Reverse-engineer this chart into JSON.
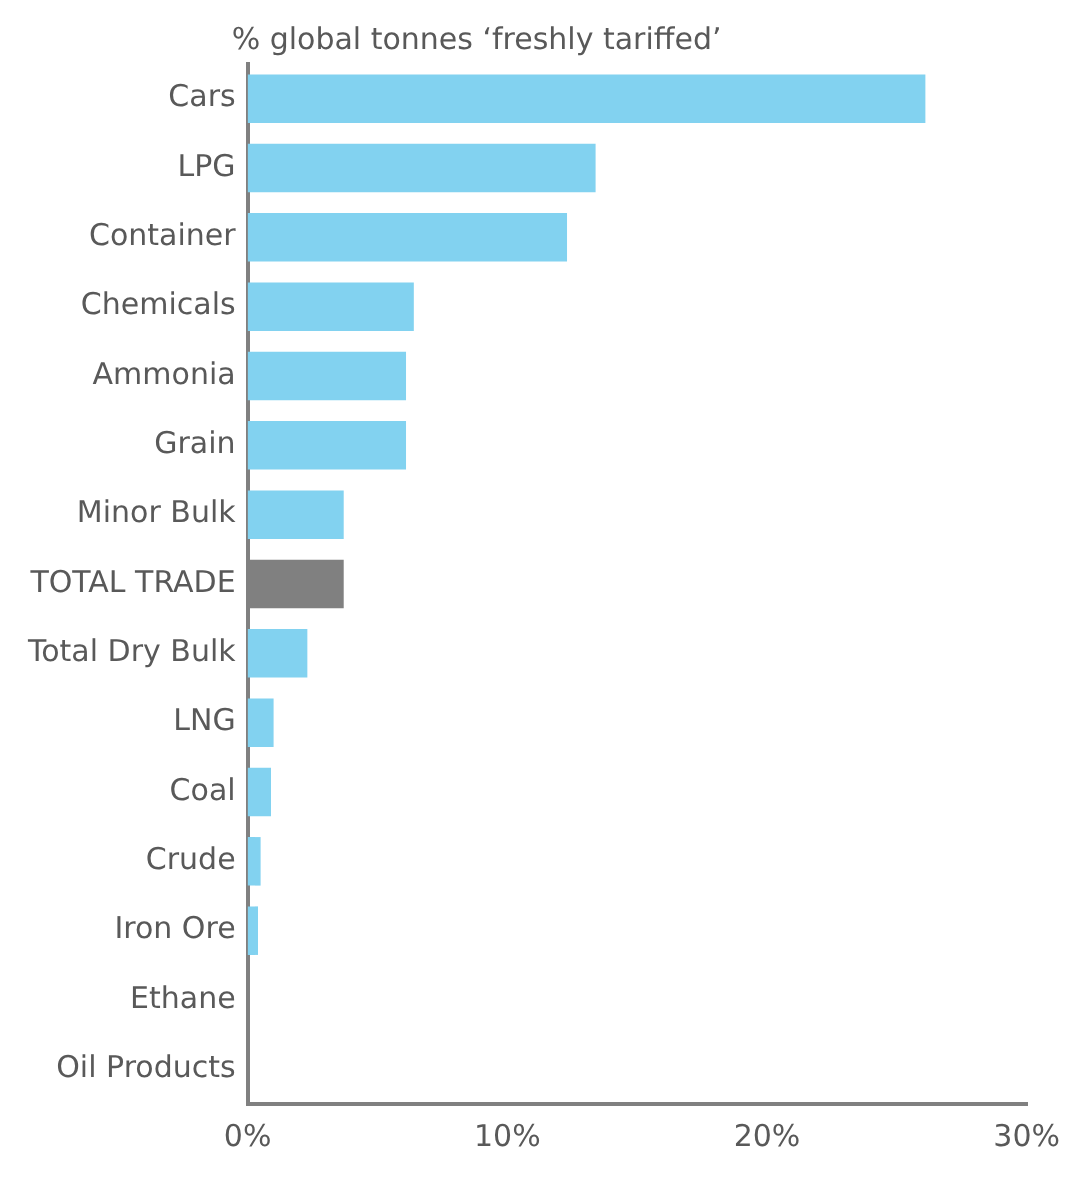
{
  "chart_data": {
    "type": "bar",
    "orientation": "horizontal",
    "title": "% global tonnes ‘freshly tariffed’",
    "categories": [
      "Cars",
      "LPG",
      "Container",
      "Chemicals",
      "Ammonia",
      "Grain",
      "Minor Bulk",
      "TOTAL TRADE",
      "Total Dry Bulk",
      "LNG",
      "Coal",
      "Crude",
      "Iron Ore",
      "Ethane",
      "Oil Products"
    ],
    "values": [
      26.1,
      13.4,
      12.3,
      6.4,
      6.1,
      6.1,
      3.7,
      3.7,
      2.3,
      1.0,
      0.9,
      0.5,
      0.4,
      0,
      0
    ],
    "colors": [
      "#82d2f0",
      "#82d2f0",
      "#82d2f0",
      "#82d2f0",
      "#82d2f0",
      "#82d2f0",
      "#82d2f0",
      "#808080",
      "#82d2f0",
      "#82d2f0",
      "#82d2f0",
      "#82d2f0",
      "#82d2f0",
      "#82d2f0",
      "#82d2f0"
    ],
    "xlim": [
      0,
      30
    ],
    "xticks": [
      {
        "value": 0,
        "label": "0%"
      },
      {
        "value": 10,
        "label": "10%"
      },
      {
        "value": 20,
        "label": "20%"
      },
      {
        "value": 30,
        "label": "30%"
      }
    ],
    "grid": false,
    "legend": false
  }
}
